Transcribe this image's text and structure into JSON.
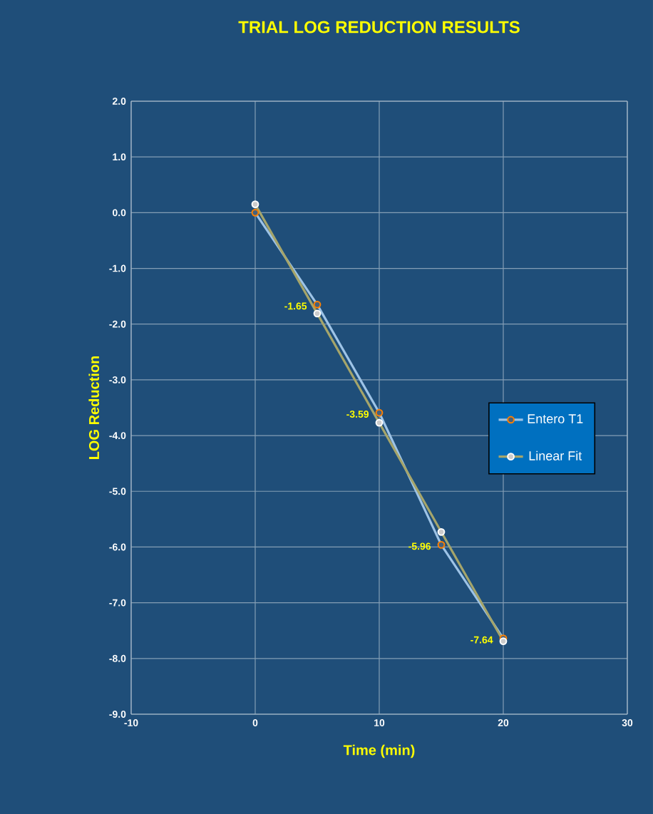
{
  "chart_data": {
    "type": "line",
    "title": "TRIAL LOG REDUCTION RESULTS",
    "xlabel": "Time (min)",
    "ylabel": "LOG Reduction",
    "x": [
      0,
      5,
      10,
      15,
      20
    ],
    "series": [
      {
        "name": "Entero T1",
        "color": "#9dc3e6",
        "values": [
          0,
          -1.65,
          -3.59,
          -5.96,
          -7.64
        ],
        "value_labels": [
          null,
          "-1.65",
          "-3.59",
          "-5.96",
          "-7.64"
        ]
      },
      {
        "name": "Linear Fit",
        "color": "#a5a56b",
        "values": [
          0.15,
          -1.81,
          -3.77,
          -5.73,
          -7.69
        ]
      }
    ],
    "xlim": [
      -10,
      30
    ],
    "xticks": [
      -10,
      0,
      10,
      20,
      30
    ],
    "ylim": [
      -9,
      2
    ],
    "yticks": [
      {
        "value": 2,
        "label": "2.0"
      },
      {
        "value": 1,
        "label": "1.0"
      },
      {
        "value": 0,
        "label": "0.0"
      },
      {
        "value": -1,
        "label": "-1.0"
      },
      {
        "value": -2,
        "label": "-2.0"
      },
      {
        "value": -3,
        "label": "-3.0"
      },
      {
        "value": -4,
        "label": "-4.0"
      },
      {
        "value": -5,
        "label": "-5.0"
      },
      {
        "value": -6,
        "label": "-6.0"
      },
      {
        "value": -7,
        "label": "-7.0"
      },
      {
        "value": -8,
        "label": "-8.0"
      },
      {
        "value": -9,
        "label": "-9.0"
      }
    ],
    "grid": true,
    "legend": "right",
    "marker": "circle",
    "line_style": "solid"
  }
}
